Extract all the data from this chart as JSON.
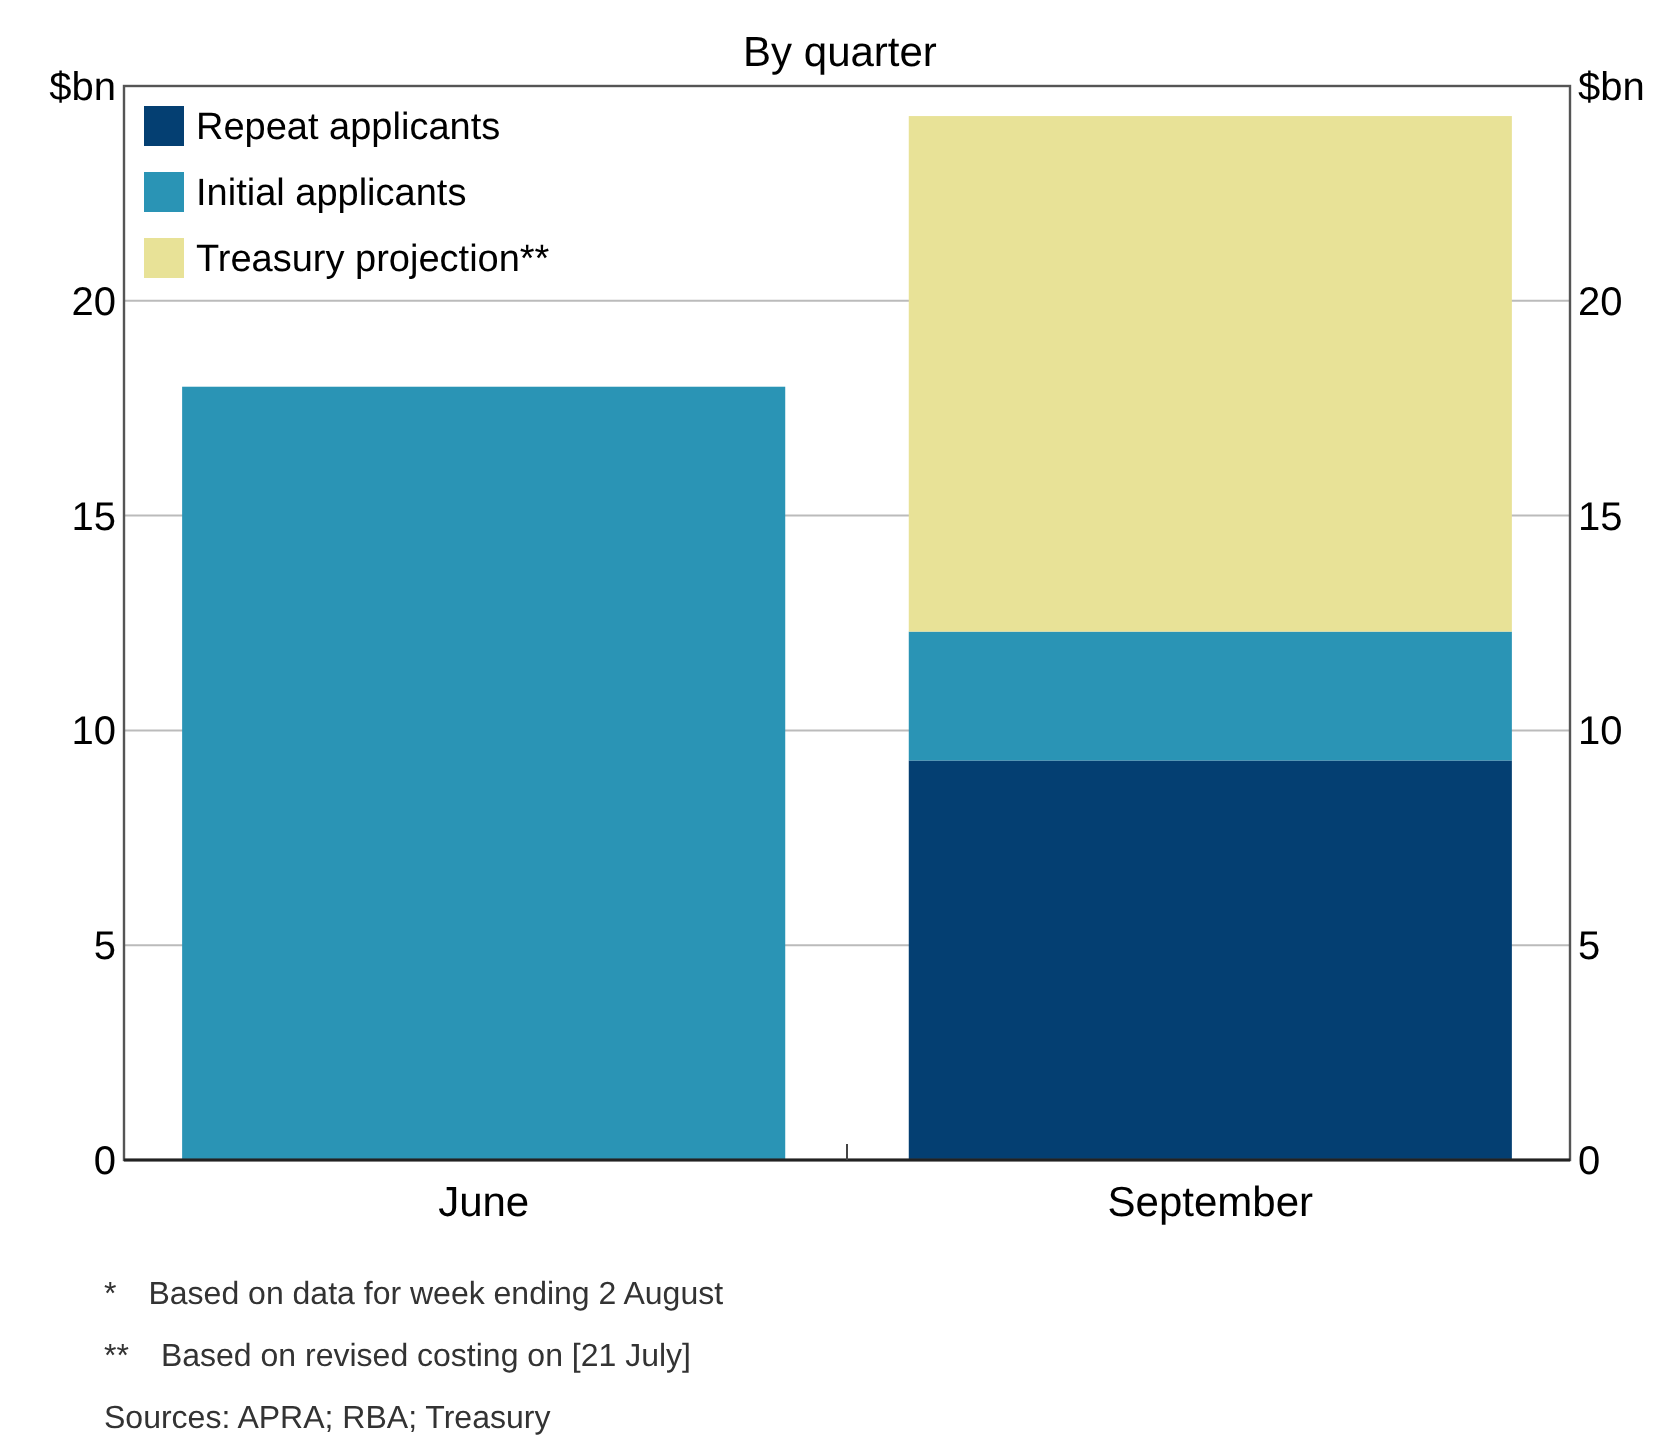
{
  "chart_data": {
    "type": "bar",
    "subtitle": "By quarter",
    "categories": [
      "June",
      "September"
    ],
    "stacked": true,
    "series": [
      {
        "name": "Repeat applicants",
        "color": "#043f72",
        "values": [
          null,
          9.3
        ]
      },
      {
        "name": "Initial applicants",
        "color": "#2a94b5",
        "values": [
          18,
          3.0
        ]
      },
      {
        "name": "Treasury projection**",
        "color": "#e8e297",
        "values": [
          null,
          12.0
        ]
      }
    ],
    "ylim": [
      0,
      25
    ],
    "yticks": [
      0,
      5,
      10,
      15,
      20,
      {
        "value": 25,
        "label": "$bn"
      }
    ],
    "y2lim": [
      0,
      25
    ],
    "y2ticks": [
      0,
      5,
      10,
      15,
      20,
      {
        "value": 25,
        "label": "$bn"
      }
    ],
    "grid": "y",
    "legend": "top left",
    "annotations": [
      "* Based on data for week ending 2 August",
      "** Based on revised costing on [21 July]",
      "Sources: APRA; RBA; Treasury"
    ]
  }
}
